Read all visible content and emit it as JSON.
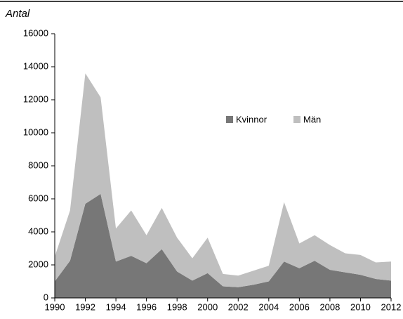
{
  "chart_data": {
    "type": "stacked_area",
    "ylabel": "Antal",
    "x": [
      1990,
      1991,
      1992,
      1993,
      1994,
      1995,
      1996,
      1997,
      1998,
      1999,
      2000,
      2001,
      2002,
      2003,
      2004,
      2005,
      2006,
      2007,
      2008,
      2009,
      2010,
      2011,
      2012
    ],
    "series": [
      {
        "name": "Kvinnor",
        "color": "#777777",
        "values": [
          1000,
          2250,
          5700,
          6300,
          2200,
          2550,
          2100,
          2950,
          1600,
          1050,
          1500,
          700,
          650,
          800,
          1000,
          2200,
          1800,
          2250,
          1700,
          1550,
          1400,
          1150,
          1050
        ]
      },
      {
        "name": "Män",
        "color": "#bfbfbf",
        "values": [
          1500,
          3050,
          7900,
          5850,
          2000,
          2750,
          1700,
          2500,
          2050,
          1350,
          2150,
          750,
          700,
          850,
          950,
          3600,
          1500,
          1550,
          1500,
          1150,
          1200,
          1000,
          1150
        ]
      }
    ],
    "xlim": [
      1990,
      2012
    ],
    "xticks": [
      1990,
      1992,
      1994,
      1996,
      1998,
      2000,
      2002,
      2004,
      2006,
      2008,
      2010,
      2012
    ],
    "ylim": [
      0,
      16000
    ],
    "yticks": [
      0,
      2000,
      4000,
      6000,
      8000,
      10000,
      12000,
      14000,
      16000
    ]
  }
}
